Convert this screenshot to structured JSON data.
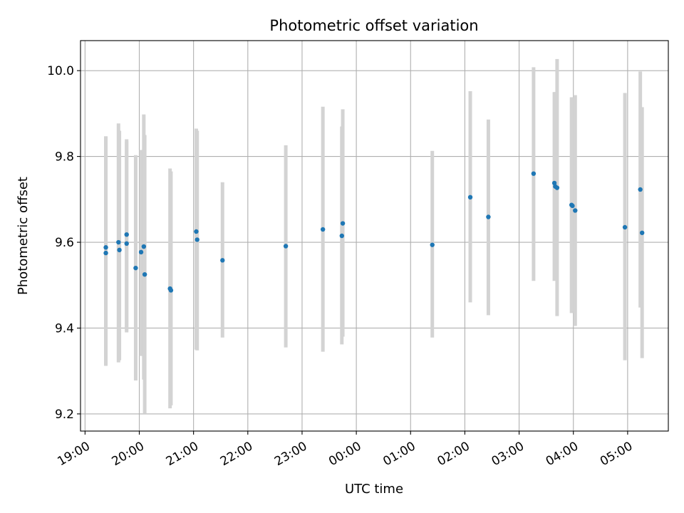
{
  "chart_data": {
    "type": "scatter",
    "title": "Photometric offset variation",
    "xlabel": "UTC time",
    "ylabel": "Photometric offset",
    "x_axis_kind": "time",
    "xlim": [
      "18:55",
      "05:45"
    ],
    "ylim": [
      9.16,
      10.07
    ],
    "x_tick_labels": [
      "19:00",
      "20:00",
      "21:00",
      "22:00",
      "23:00",
      "00:00",
      "01:00",
      "02:00",
      "03:00",
      "04:00",
      "05:00"
    ],
    "y_tick_labels": [
      "9.2",
      "9.4",
      "9.6",
      "9.8",
      "10.0"
    ],
    "grid": true,
    "error_bar_color": "#d3d3d3",
    "point_color": "#1f77b4",
    "points": [
      {
        "time": "19:23",
        "y": 9.588,
        "low": 9.312,
        "high": 9.847
      },
      {
        "time": "19:23",
        "y": 9.575,
        "low": 9.315,
        "high": 9.845
      },
      {
        "time": "19:37",
        "y": 9.6,
        "low": 9.32,
        "high": 9.877
      },
      {
        "time": "19:38",
        "y": 9.582,
        "low": 9.325,
        "high": 9.86
      },
      {
        "time": "19:46",
        "y": 9.618,
        "low": 9.39,
        "high": 9.84
      },
      {
        "time": "19:46",
        "y": 9.597,
        "low": 9.395,
        "high": 9.835
      },
      {
        "time": "19:56",
        "y": 9.54,
        "low": 9.278,
        "high": 9.803
      },
      {
        "time": "20:02",
        "y": 9.577,
        "low": 9.335,
        "high": 9.815
      },
      {
        "time": "20:05",
        "y": 9.59,
        "low": 9.28,
        "high": 9.898
      },
      {
        "time": "20:06",
        "y": 9.525,
        "low": 9.2,
        "high": 9.85
      },
      {
        "time": "20:34",
        "y": 9.492,
        "low": 9.213,
        "high": 9.772
      },
      {
        "time": "20:35",
        "y": 9.488,
        "low": 9.22,
        "high": 9.765
      },
      {
        "time": "21:03",
        "y": 9.625,
        "low": 9.35,
        "high": 9.865
      },
      {
        "time": "21:04",
        "y": 9.606,
        "low": 9.348,
        "high": 9.86
      },
      {
        "time": "21:32",
        "y": 9.558,
        "low": 9.378,
        "high": 9.74
      },
      {
        "time": "22:42",
        "y": 9.591,
        "low": 9.355,
        "high": 9.826
      },
      {
        "time": "23:23",
        "y": 9.63,
        "low": 9.345,
        "high": 9.916
      },
      {
        "time": "23:44",
        "y": 9.615,
        "low": 9.362,
        "high": 9.87
      },
      {
        "time": "23:45",
        "y": 9.644,
        "low": 9.38,
        "high": 9.91
      },
      {
        "time": "01:24",
        "y": 9.594,
        "low": 9.378,
        "high": 9.813
      },
      {
        "time": "02:06",
        "y": 9.705,
        "low": 9.46,
        "high": 9.952
      },
      {
        "time": "02:26",
        "y": 9.659,
        "low": 9.43,
        "high": 9.886
      },
      {
        "time": "03:16",
        "y": 9.76,
        "low": 9.51,
        "high": 10.008
      },
      {
        "time": "03:39",
        "y": 9.738,
        "low": 9.51,
        "high": 9.95
      },
      {
        "time": "03:40",
        "y": 9.73,
        "low": 9.52,
        "high": 9.95
      },
      {
        "time": "03:42",
        "y": 9.727,
        "low": 9.428,
        "high": 10.027
      },
      {
        "time": "03:58",
        "y": 9.687,
        "low": 9.435,
        "high": 9.938
      },
      {
        "time": "03:59",
        "y": 9.685,
        "low": 9.44,
        "high": 9.935
      },
      {
        "time": "04:02",
        "y": 9.674,
        "low": 9.405,
        "high": 9.943
      },
      {
        "time": "04:57",
        "y": 9.635,
        "low": 9.325,
        "high": 9.948
      },
      {
        "time": "05:14",
        "y": 9.723,
        "low": 9.448,
        "high": 9.998
      },
      {
        "time": "05:16",
        "y": 9.622,
        "low": 9.33,
        "high": 9.915
      }
    ]
  }
}
